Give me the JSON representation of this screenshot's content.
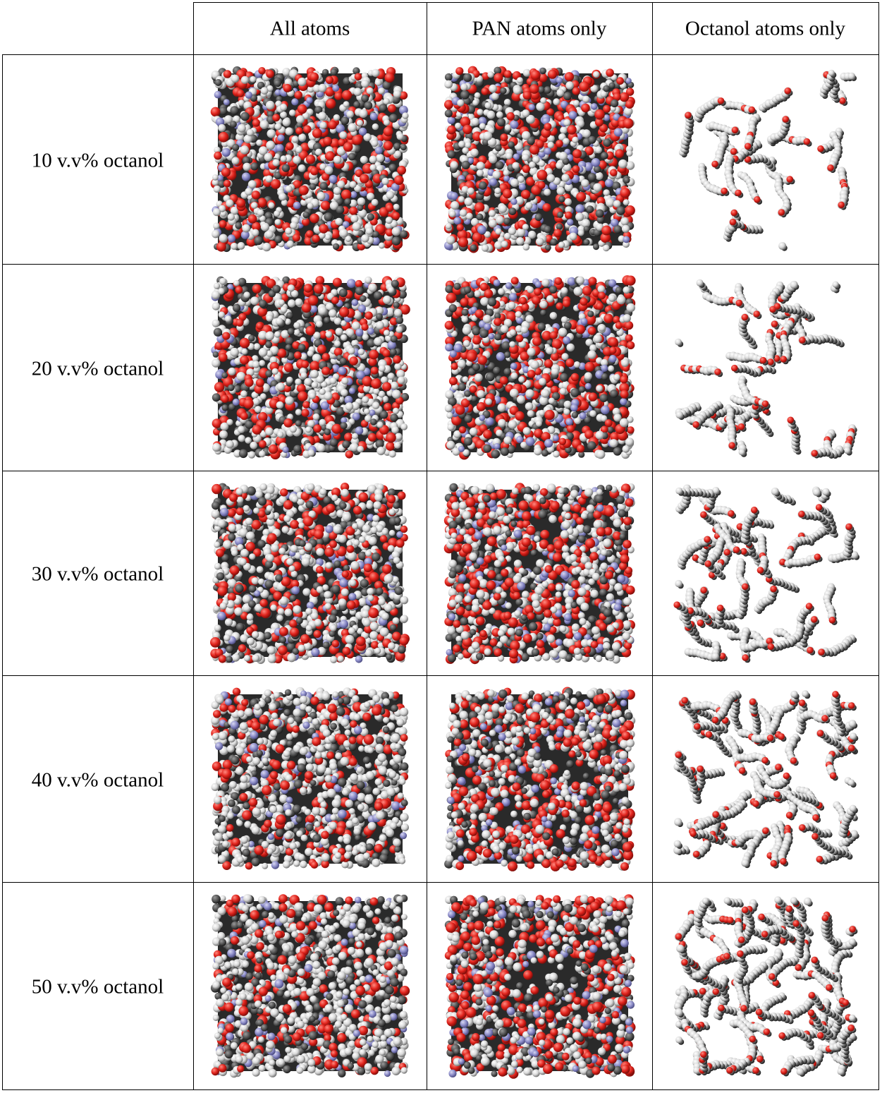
{
  "table": {
    "columns": [
      "",
      "All atoms",
      "PAN atoms only",
      "Octanol atoms only"
    ],
    "rows": [
      {
        "label": "10 v.v% octanol",
        "images": [
          "all-atoms-snapshot",
          "pan-atoms-snapshot",
          "octanol-atoms-snapshot"
        ]
      },
      {
        "label": "20 v.v% octanol",
        "images": [
          "all-atoms-snapshot",
          "pan-atoms-snapshot",
          "octanol-atoms-snapshot"
        ]
      },
      {
        "label": "30 v.v% octanol",
        "images": [
          "all-atoms-snapshot",
          "pan-atoms-snapshot",
          "octanol-atoms-snapshot"
        ]
      },
      {
        "label": "40 v.v% octanol",
        "images": [
          "all-atoms-snapshot",
          "pan-atoms-snapshot",
          "octanol-atoms-snapshot"
        ]
      },
      {
        "label": "50 v.v% octanol",
        "images": [
          "all-atoms-snapshot",
          "pan-atoms-snapshot",
          "octanol-atoms-snapshot"
        ]
      }
    ],
    "octanol_fractions": [
      0.1,
      0.2,
      0.3,
      0.4,
      0.5
    ]
  },
  "colors": {
    "border": "#000000",
    "oxygen_red": "#e0231c",
    "hydrogen_white": "#f2f2f2",
    "carbon_grey": "#3a3a3a",
    "nitrogen_blue": "#8c8cc8",
    "background": "#ffffff"
  }
}
